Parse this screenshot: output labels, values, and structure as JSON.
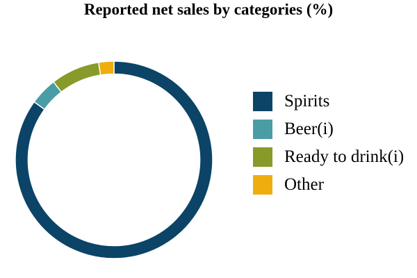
{
  "chart_data": {
    "type": "pie",
    "title": "Reported net sales by categories (%)",
    "categories": [
      "Spirits",
      "Beer(i)",
      "Ready to drink(i)",
      "Other"
    ],
    "values": [
      85,
      4.5,
      8,
      2.5
    ],
    "colors": [
      "#0b4467",
      "#4a9da5",
      "#879a2a",
      "#efad0e"
    ],
    "hole_ratio": 0.87,
    "legend_position": "right",
    "grid": false
  }
}
